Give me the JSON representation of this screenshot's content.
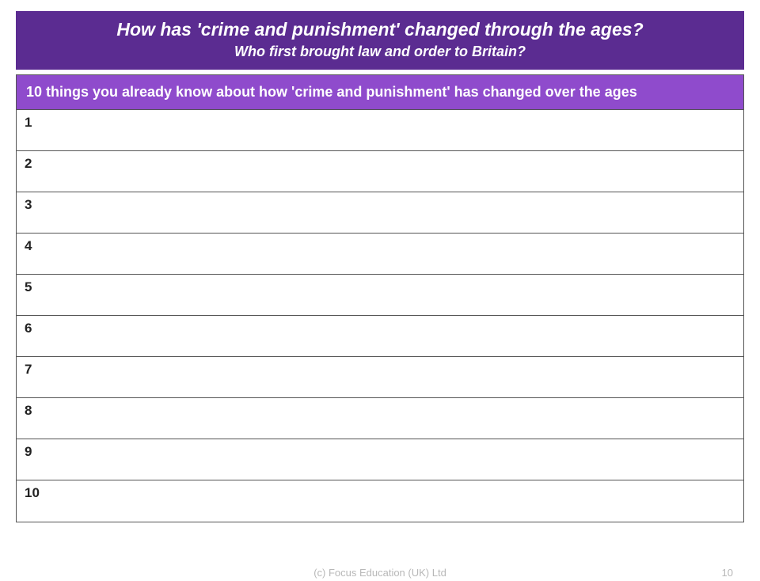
{
  "header": {
    "title": "How has 'crime and punishment' changed through the ages?",
    "subtitle": "Who first brought law and order to Britain?"
  },
  "table": {
    "header_text": "10 things you already know about how 'crime and punishment'  has changed over the ages",
    "rows": [
      {
        "num": "1",
        "content": ""
      },
      {
        "num": "2",
        "content": ""
      },
      {
        "num": "3",
        "content": ""
      },
      {
        "num": "4",
        "content": ""
      },
      {
        "num": "5",
        "content": ""
      },
      {
        "num": "6",
        "content": ""
      },
      {
        "num": "7",
        "content": ""
      },
      {
        "num": "8",
        "content": ""
      },
      {
        "num": "9",
        "content": ""
      },
      {
        "num": "10",
        "content": ""
      }
    ]
  },
  "footer": {
    "copyright": "(c) Focus Education (UK) Ltd",
    "page_number": "10"
  },
  "colors": {
    "header_bg": "#5b2c91",
    "table_header_bg": "#8f4bcc",
    "text_light": "#ffffff",
    "border": "#555555",
    "footer_text": "#b8b8b8"
  }
}
